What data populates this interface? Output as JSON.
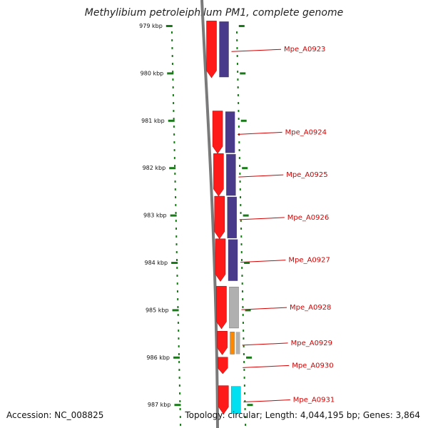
{
  "title": "Methylibium petroleiphilum PM1, complete genome",
  "footer": {
    "accession": "Accession: NC_008825",
    "topology": "Topology: circular; Length: 4,044,195 bp; Genes: 3,864"
  },
  "ruler": {
    "unit": "kbp",
    "ticks": [
      {
        "kbp": 979,
        "label": "979 kbp"
      },
      {
        "kbp": 980,
        "label": "980 kbp"
      },
      {
        "kbp": 981,
        "label": "981 kbp"
      },
      {
        "kbp": 982,
        "label": "982 kbp"
      },
      {
        "kbp": 983,
        "label": "983 kbp"
      },
      {
        "kbp": 984,
        "label": "984 kbp"
      },
      {
        "kbp": 985,
        "label": "985 kbp"
      },
      {
        "kbp": 986,
        "label": "986 kbp"
      },
      {
        "kbp": 987,
        "label": "987 kbp"
      }
    ]
  },
  "colors": {
    "gene_red": "#ff1a1a",
    "track_purple": "#4a3a8c",
    "track_gray": "#b0b0b0",
    "track_orange": "#ff8800",
    "track_cyan": "#00e0f0",
    "label_red": "#d40000",
    "tick_green": "#1a7a1a",
    "backbone": "#7a7a7a"
  },
  "genes": [
    {
      "label": "Mpe_A0923",
      "start": 978.9,
      "end": 980.1,
      "track": "purple"
    },
    {
      "label": "Mpe_A0924",
      "start": 980.8,
      "end": 981.7,
      "track": "purple"
    },
    {
      "label": "Mpe_A0925",
      "start": 981.7,
      "end": 982.6,
      "track": "purple"
    },
    {
      "label": "Mpe_A0926",
      "start": 982.6,
      "end": 983.5,
      "track": "purple"
    },
    {
      "label": "Mpe_A0927",
      "start": 983.5,
      "end": 984.4,
      "track": "purple"
    },
    {
      "label": "Mpe_A0928",
      "start": 984.5,
      "end": 985.4,
      "track": "gray"
    },
    {
      "label": "Mpe_A0929",
      "start": 985.45,
      "end": 985.95,
      "track": "orange"
    },
    {
      "label": "Mpe_A0930",
      "start": 986.0,
      "end": 986.35,
      "track": null
    },
    {
      "label": "Mpe_A0931",
      "start": 986.6,
      "end": 987.2,
      "track": "cyan"
    }
  ]
}
